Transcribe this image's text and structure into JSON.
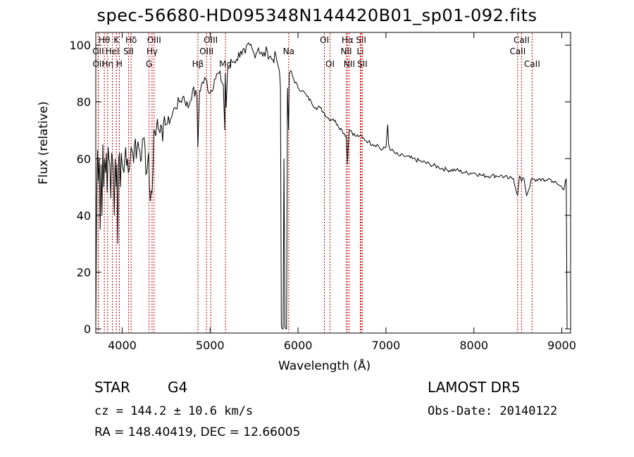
{
  "title": "spec-56680-HD095348N144420B01_sp01-092.fits",
  "footer": {
    "object_class": "STAR",
    "object_subclass": "G4",
    "survey": "LAMOST DR5",
    "cz": "cz = 144.2 ± 10.6 km/s",
    "obs_date": "Obs-Date: 20140122",
    "radec": "RA = 148.40419, DEC =  12.66005"
  },
  "chart_data": {
    "type": "line",
    "xlabel": "Wavelength (Å)",
    "ylabel": "Flux (relative)",
    "xlim": [
      3700,
      9100
    ],
    "ylim": [
      0,
      105
    ],
    "xticks": [
      4000,
      5000,
      6000,
      7000,
      8000,
      9000
    ],
    "yticks": [
      0,
      20,
      40,
      60,
      80,
      100
    ],
    "grid": false,
    "line_color": "#000000",
    "marker_color": "#c00000",
    "series": [
      {
        "x": [
          3700,
          3710,
          3720,
          3730,
          3740,
          3750,
          3760,
          3770,
          3780,
          3790,
          3800,
          3810,
          3820,
          3830,
          3840,
          3850,
          3860,
          3870,
          3880,
          3890,
          3900,
          3910,
          3920,
          3933,
          3940,
          3950,
          3960,
          3968,
          3980,
          3990,
          4000,
          4020,
          4040,
          4060,
          4080,
          4101,
          4120,
          4140,
          4160,
          4180,
          4200,
          4220,
          4240,
          4260,
          4280,
          4300,
          4320,
          4340,
          4360,
          4380,
          4400,
          4420,
          4440,
          4460,
          4480,
          4500,
          4550,
          4600,
          4650,
          4700,
          4750,
          4800,
          4850,
          4861,
          4880,
          4900,
          4950,
          5000,
          5050,
          5100,
          5150,
          5167,
          5172,
          5183,
          5200,
          5250,
          5300,
          5350,
          5400,
          5450,
          5500,
          5550,
          5600,
          5650,
          5700,
          5750,
          5780,
          5800,
          5810,
          5820,
          5830,
          5840,
          5850,
          5860,
          5870,
          5880,
          5893,
          5900,
          5920,
          5950,
          6000,
          6050,
          6100,
          6150,
          6200,
          6250,
          6300,
          6350,
          6400,
          6450,
          6500,
          6550,
          6563,
          6580,
          6600,
          6650,
          6700,
          6750,
          6800,
          6850,
          6900,
          6950,
          7000,
          7020,
          7030,
          7040,
          7060,
          7100,
          7150,
          7200,
          7300,
          7400,
          7500,
          7600,
          7700,
          7800,
          7900,
          8000,
          8100,
          8200,
          8300,
          8400,
          8450,
          8498,
          8520,
          8542,
          8570,
          8600,
          8662,
          8700,
          8750,
          8800,
          8850,
          8900,
          8950,
          9000,
          9020,
          9040,
          9050,
          9060
        ],
        "y": [
          1,
          45,
          63,
          52,
          60,
          35,
          58,
          40,
          65,
          50,
          60,
          55,
          62,
          48,
          64,
          60,
          58,
          46,
          62,
          60,
          55,
          40,
          60,
          50,
          58,
          30,
          60,
          62,
          50,
          62,
          58,
          55,
          64,
          60,
          56,
          64,
          62,
          65,
          60,
          66,
          63,
          60,
          67,
          64,
          55,
          62,
          45,
          48,
          70,
          68,
          74,
          70,
          72,
          66,
          75,
          72,
          74,
          78,
          80,
          82,
          78,
          84,
          82,
          64,
          84,
          86,
          88,
          83,
          88,
          90,
          86,
          70,
          90,
          78,
          92,
          94,
          95,
          98,
          97,
          100,
          97,
          99,
          96,
          98,
          95,
          96,
          92,
          85,
          1,
          0,
          0,
          60,
          1,
          0,
          0,
          85,
          70,
          90,
          91,
          88,
          85,
          84,
          82,
          80,
          78,
          78,
          76,
          74,
          74,
          72,
          70,
          68,
          58,
          70,
          70,
          68,
          68,
          67,
          66,
          65,
          65,
          63,
          64,
          72,
          65,
          64,
          63,
          62,
          61,
          61,
          60,
          59,
          58,
          57,
          56,
          56,
          55,
          55,
          54,
          54,
          54,
          53,
          53,
          47,
          54,
          52,
          53,
          47,
          53,
          52,
          53,
          52,
          53,
          52,
          51,
          50,
          49,
          52,
          53,
          0
        ]
      }
    ],
    "line_markers": [
      {
        "label": "Hθ",
        "wavelength": 3797,
        "row": 1
      },
      {
        "label": "OII",
        "wavelength": 3727,
        "row": 2
      },
      {
        "label": "OII",
        "wavelength": 3729,
        "row": 3
      },
      {
        "label": "Hη",
        "wavelength": 3835,
        "row": 3
      },
      {
        "label": "HeI",
        "wavelength": 3889,
        "row": 2
      },
      {
        "label": "K",
        "wavelength": 3934,
        "row": 1
      },
      {
        "label": "H",
        "wavelength": 3968,
        "row": 3
      },
      {
        "label": "Hδ",
        "wavelength": 4102,
        "row": 1
      },
      {
        "label": "SII",
        "wavelength": 4072,
        "row": 2
      },
      {
        "label": "OIII",
        "wavelength": 4363,
        "row": 1
      },
      {
        "label": "Hγ",
        "wavelength": 4340,
        "row": 2
      },
      {
        "label": "G",
        "wavelength": 4305,
        "row": 3
      },
      {
        "label": "OIII",
        "wavelength": 5007,
        "row": 1
      },
      {
        "label": "OIII",
        "wavelength": 4959,
        "row": 2
      },
      {
        "label": "Hβ",
        "wavelength": 4861,
        "row": 3
      },
      {
        "label": "Mg",
        "wavelength": 5175,
        "row": 3
      },
      {
        "label": "Na",
        "wavelength": 5894,
        "row": 2
      },
      {
        "label": "OI",
        "wavelength": 6300,
        "row": 1
      },
      {
        "label": "OI",
        "wavelength": 6364,
        "row": 3
      },
      {
        "label": "Hα",
        "wavelength": 6563,
        "row": 1
      },
      {
        "label": "NII",
        "wavelength": 6548,
        "row": 2
      },
      {
        "label": "NII",
        "wavelength": 6583,
        "row": 3
      },
      {
        "label": "SII",
        "wavelength": 6717,
        "row": 1
      },
      {
        "label": "Li",
        "wavelength": 6708,
        "row": 2
      },
      {
        "label": "SII",
        "wavelength": 6731,
        "row": 3
      },
      {
        "label": "CaII",
        "wavelength": 8542,
        "row": 1
      },
      {
        "label": "CaII",
        "wavelength": 8498,
        "row": 2
      },
      {
        "label": "CaII",
        "wavelength": 8662,
        "row": 3
      }
    ]
  }
}
